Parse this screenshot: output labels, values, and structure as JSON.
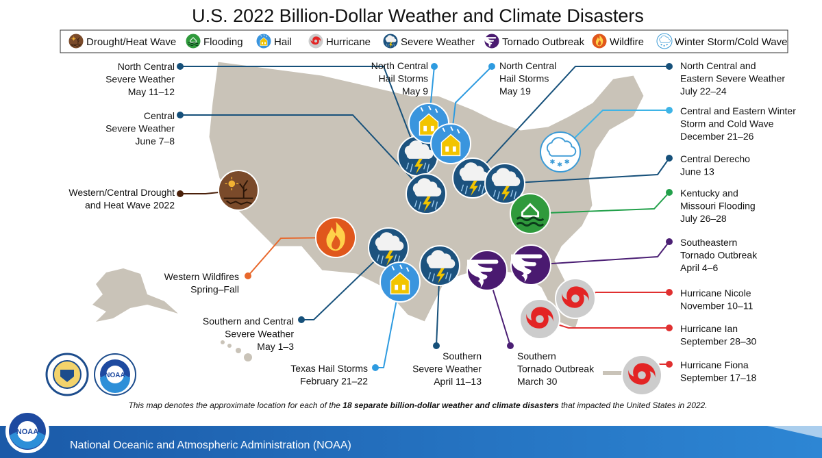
{
  "title": "U.S. 2022 Billion-Dollar Weather and Climate Disasters",
  "legend": [
    "Drought/Heat Wave",
    "Flooding",
    "Hail",
    "Hurricane",
    "Severe Weather",
    "Tornado Outbreak",
    "Wildfire",
    "Winter Storm/Cold Wave"
  ],
  "events": [
    {
      "lines": [
        "North Central",
        "Severe Weather",
        "May 11–12"
      ]
    },
    {
      "lines": [
        "Central",
        "Severe Weather",
        "June 7–8"
      ]
    },
    {
      "lines": [
        "Western/Central Drought",
        "and Heat Wave 2022"
      ]
    },
    {
      "lines": [
        "Western Wildfires",
        "Spring–Fall"
      ]
    },
    {
      "lines": [
        "Southern and Central",
        "Severe Weather",
        "May 1–3"
      ]
    },
    {
      "lines": [
        "Texas Hail Storms",
        "February 21–22"
      ]
    },
    {
      "lines": [
        "Southern",
        "Severe Weather",
        "April 11–13"
      ]
    },
    {
      "lines": [
        "Southern",
        "Tornado Outbreak",
        "March 30"
      ]
    },
    {
      "lines": [
        "North Central",
        "Hail Storms",
        "May 9"
      ]
    },
    {
      "lines": [
        "North Central",
        "Hail Storms",
        "May 19"
      ]
    },
    {
      "lines": [
        "North Central and",
        "Eastern Severe Weather",
        "July 22–24"
      ]
    },
    {
      "lines": [
        "Central and Eastern Winter",
        "Storm and Cold Wave",
        "December 21–26"
      ]
    },
    {
      "lines": [
        "Central Derecho",
        "June 13"
      ]
    },
    {
      "lines": [
        "Kentucky and",
        "Missouri Flooding",
        "July 26–28"
      ]
    },
    {
      "lines": [
        "Southeastern",
        "Tornado Outbreak",
        "April 4–6"
      ]
    },
    {
      "lines": [
        "Hurricane Nicole",
        "November 10–11"
      ]
    },
    {
      "lines": [
        "Hurricane Ian",
        "September 28–30"
      ]
    },
    {
      "lines": [
        "Hurricane Fiona",
        "September 17–18"
      ]
    }
  ],
  "footnote": [
    "This map denotes the approximate location for each of the ",
    "18 separate billion-dollar weather and climate disasters",
    " that impacted the United States in 2022."
  ],
  "logo": "NOAA",
  "footer": "National Oceanic and Atmospheric Administration (NOAA)"
}
